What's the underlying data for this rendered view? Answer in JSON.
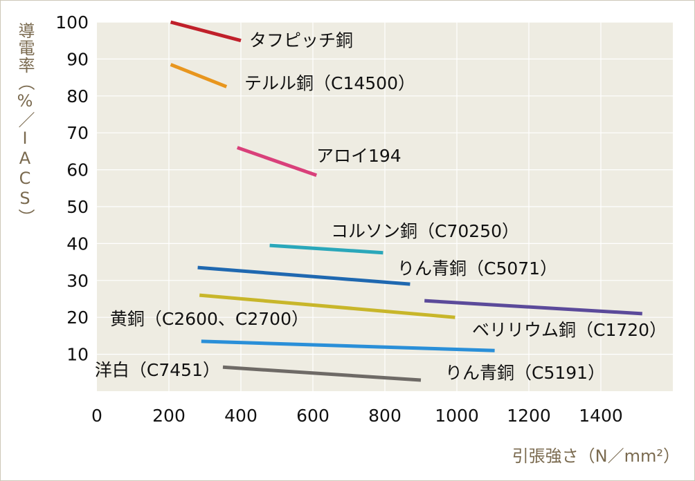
{
  "chart_data": {
    "type": "line",
    "title": "",
    "xlabel": "引張強さ（N／mm²）",
    "ylabel": "導電率（%／IACS）",
    "xlim": [
      0,
      1600
    ],
    "ylim": [
      0,
      100
    ],
    "xticks": [
      0,
      200,
      400,
      600,
      800,
      1000,
      1200,
      1400
    ],
    "yticks": [
      10,
      20,
      30,
      40,
      50,
      60,
      70,
      80,
      90,
      100
    ],
    "grid": true,
    "series": [
      {
        "name": "タフピッチ銅",
        "color": "#c0202a",
        "x": [
          205,
          400
        ],
        "y": [
          100,
          95
        ]
      },
      {
        "name": "テルル銅（C14500）",
        "color": "#e8961e",
        "x": [
          205,
          360
        ],
        "y": [
          88.5,
          82.5
        ]
      },
      {
        "name": "アロイ194",
        "color": "#d9407a",
        "x": [
          390,
          610
        ],
        "y": [
          66,
          58.5
        ]
      },
      {
        "name": "コルソン銅（C70250）",
        "color": "#2aa7ba",
        "x": [
          480,
          795
        ],
        "y": [
          39.5,
          37.5
        ]
      },
      {
        "name": "りん青銅（C5071）",
        "color": "#1f68b0",
        "x": [
          280,
          870
        ],
        "y": [
          33.5,
          29
        ]
      },
      {
        "name": "黄銅（C2600、C2700）",
        "color": "#c8b62a",
        "x": [
          285,
          995
        ],
        "y": [
          26,
          20
        ]
      },
      {
        "name": "ベリリウム銅（C1720）",
        "color": "#5b4a9a",
        "x": [
          910,
          1515
        ],
        "y": [
          24.5,
          21
        ]
      },
      {
        "name": "りん青銅（C5191）",
        "color": "#2a8fd8",
        "x": [
          290,
          1105
        ],
        "y": [
          13.5,
          11
        ]
      },
      {
        "name": "洋白（C7451）",
        "color": "#6e6a66",
        "x": [
          350,
          900
        ],
        "y": [
          6.5,
          3
        ]
      }
    ]
  }
}
